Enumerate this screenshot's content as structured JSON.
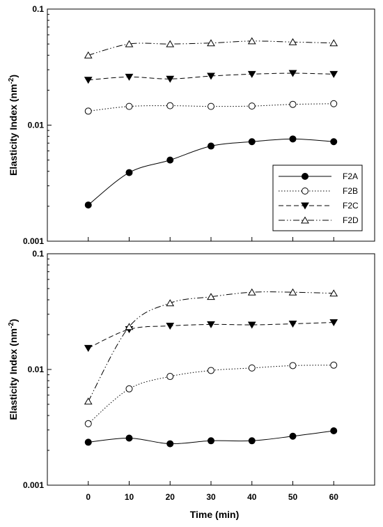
{
  "xlabel": "Time (min)",
  "chart_data": [
    {
      "type": "line",
      "title": "",
      "xlabel": "",
      "ylabel": "Elasticity Index (nm⁻²)",
      "yscale": "log",
      "xlim": [
        -10,
        70
      ],
      "ylim": [
        0.001,
        0.1
      ],
      "x": [
        0,
        10,
        20,
        30,
        40,
        50,
        60
      ],
      "xticks": [
        "0",
        "10",
        "20",
        "30",
        "40",
        "50",
        "60"
      ],
      "yticks": [
        "0.001",
        "0.01",
        "0.1"
      ],
      "grid": false,
      "legend_position": "center-right",
      "series": [
        {
          "name": "F2A",
          "marker": "filled-circle",
          "line": "solid",
          "values": [
            0.00205,
            0.0039,
            0.005,
            0.0066,
            0.0072,
            0.0076,
            0.0072
          ]
        },
        {
          "name": "F2B",
          "marker": "open-circle",
          "line": "dotted",
          "values": [
            0.0132,
            0.0145,
            0.0147,
            0.0145,
            0.0146,
            0.0151,
            0.0153
          ]
        },
        {
          "name": "F2C",
          "marker": "filled-triangle-down",
          "line": "dashed",
          "values": [
            0.0245,
            0.026,
            0.025,
            0.0265,
            0.0275,
            0.028,
            0.0275
          ]
        },
        {
          "name": "F2D",
          "marker": "open-triangle-up",
          "line": "dash-dot-dot",
          "values": [
            0.04,
            0.05,
            0.05,
            0.051,
            0.053,
            0.052,
            0.051
          ]
        }
      ]
    },
    {
      "type": "line",
      "title": "",
      "xlabel": "Time (min)",
      "ylabel": "Elasticity Index (nm⁻²)",
      "yscale": "log",
      "xlim": [
        -10,
        70
      ],
      "ylim": [
        0.001,
        0.1
      ],
      "x": [
        0,
        10,
        20,
        30,
        40,
        50,
        60
      ],
      "xticks": [
        "0",
        "10",
        "20",
        "30",
        "40",
        "50",
        "60"
      ],
      "yticks": [
        "0.001",
        "0.01",
        "0.1"
      ],
      "grid": false,
      "series": [
        {
          "name": "F2A",
          "marker": "filled-circle",
          "line": "solid",
          "values": [
            0.00235,
            0.00255,
            0.00228,
            0.00242,
            0.00242,
            0.00265,
            0.00295
          ]
        },
        {
          "name": "F2B",
          "marker": "open-circle",
          "line": "dotted",
          "values": [
            0.0034,
            0.0068,
            0.0087,
            0.0098,
            0.0103,
            0.0108,
            0.0109
          ]
        },
        {
          "name": "F2C",
          "marker": "filled-triangle-down",
          "line": "dashed",
          "values": [
            0.0153,
            0.0222,
            0.0238,
            0.0245,
            0.0243,
            0.0248,
            0.0255
          ]
        },
        {
          "name": "F2D",
          "marker": "open-triangle-up",
          "line": "dash-dot-dot",
          "values": [
            0.0053,
            0.0234,
            0.0375,
            0.0425,
            0.0465,
            0.0465,
            0.0455
          ]
        }
      ]
    }
  ]
}
